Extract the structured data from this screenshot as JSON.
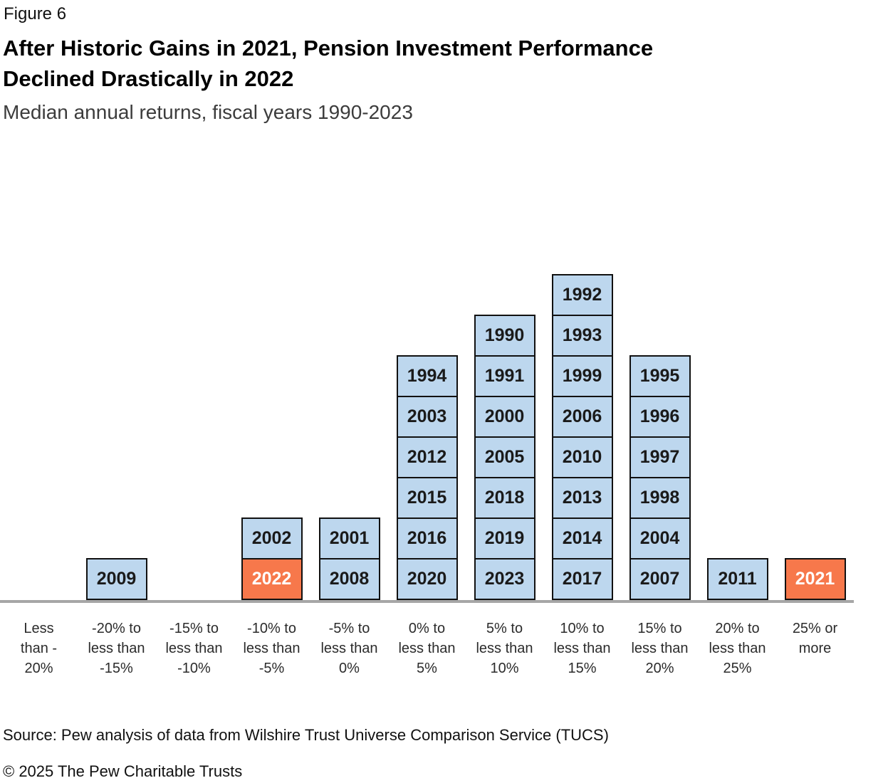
{
  "header": {
    "figure_label": "Figure 6",
    "title": "After Historic Gains in 2021, Pension Investment Performance\nDeclined Drastically in 2022",
    "subtitle": "Median annual returns, fiscal years 1990-2023"
  },
  "footer": {
    "source": "Source: Pew analysis of data from Wilshire Trust Universe Comparison Service (TUCS)",
    "copyright": "© 2025 The Pew Charitable Trusts"
  },
  "colors": {
    "bar_fill": "#BDD7EE",
    "highlight_fill": "#F7784B",
    "bar_border": "#111111",
    "axis_line": "#A6A6A6",
    "year_text": "#1A1A1A",
    "highlight_text": "#FFFFFF"
  },
  "chart_data": {
    "type": "bar",
    "subtype": "stacked-year-histogram",
    "orientation": "vertical",
    "unit": "1 box = 1 fiscal year",
    "title": "After Historic Gains in 2021, Pension Investment Performance Declined Drastically in 2022",
    "subtitle": "Median annual returns, fiscal years 1990-2023",
    "xlabel": "",
    "ylabel": "",
    "grid": false,
    "legend": "none",
    "categories": [
      "Less than -20%",
      "-20% to less than -15%",
      "-15% to less than -10%",
      "-10% to less than -5%",
      "-5% to less than 0%",
      "0% to less than 5%",
      "5% to less than 10%",
      "10% to less than 15%",
      "15% to less than 20%",
      "20% to less than 25%",
      "25% or more"
    ],
    "values": [
      0,
      1,
      0,
      2,
      2,
      6,
      7,
      8,
      6,
      1,
      1
    ],
    "highlighted_years": [
      "2022",
      "2021"
    ],
    "bins": [
      {
        "range_label": "Less than -20%",
        "label_lines": "Less\nthan -\n20%",
        "years": []
      },
      {
        "range_label": "-20% to less than -15%",
        "label_lines": "-20% to\nless than\n-15%",
        "years": [
          "2009"
        ]
      },
      {
        "range_label": "-15% to less than -10%",
        "label_lines": "-15% to\nless than\n-10%",
        "years": []
      },
      {
        "range_label": "-10% to less than -5%",
        "label_lines": "-10% to\nless than\n-5%",
        "years": [
          "2002",
          "2022"
        ]
      },
      {
        "range_label": "-5% to less than 0%",
        "label_lines": "-5% to\nless than\n0%",
        "years": [
          "2001",
          "2008"
        ]
      },
      {
        "range_label": "0% to less than 5%",
        "label_lines": "0% to\nless than\n5%",
        "years": [
          "1994",
          "2003",
          "2012",
          "2015",
          "2016",
          "2020"
        ]
      },
      {
        "range_label": "5% to less than 10%",
        "label_lines": "5% to\nless than\n10%",
        "years": [
          "1990",
          "1991",
          "2000",
          "2005",
          "2018",
          "2019",
          "2023"
        ]
      },
      {
        "range_label": "10% to less than 15%",
        "label_lines": "10% to\nless than\n15%",
        "years": [
          "1992",
          "1993",
          "1999",
          "2006",
          "2010",
          "2013",
          "2014",
          "2017"
        ]
      },
      {
        "range_label": "15% to less than 20%",
        "label_lines": "15% to\nless than\n20%",
        "years": [
          "1995",
          "1996",
          "1997",
          "1998",
          "2004",
          "2007"
        ]
      },
      {
        "range_label": "20% to less than 25%",
        "label_lines": "20% to\nless than\n25%",
        "years": [
          "2011"
        ]
      },
      {
        "range_label": "25% or more",
        "label_lines": "25% or\nmore",
        "years": [
          "2021"
        ]
      }
    ]
  }
}
